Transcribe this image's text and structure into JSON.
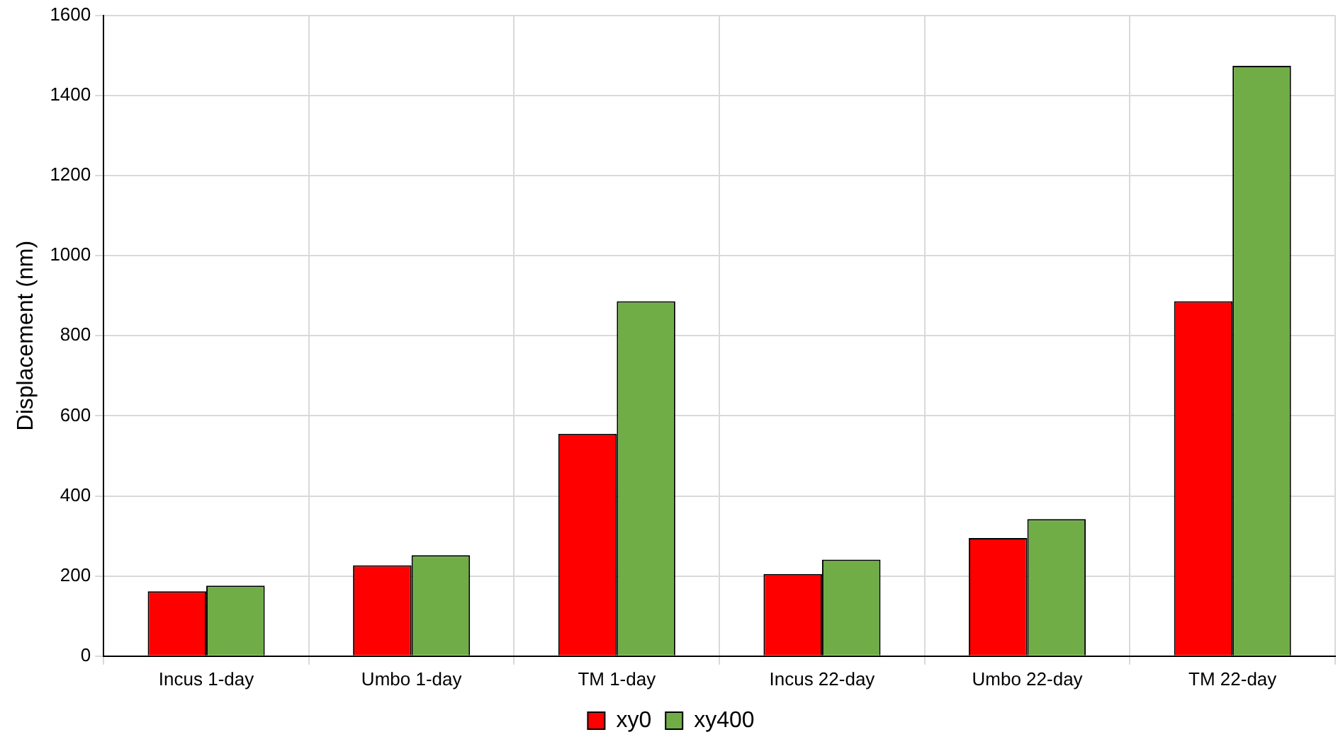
{
  "chart_data": {
    "type": "bar",
    "ylabel": "Displacement (nm)",
    "categories": [
      "Incus 1-day",
      "Umbo 1-day",
      "TM 1-day",
      "Incus 22-day",
      "Umbo 22-day",
      "TM 22-day"
    ],
    "series": [
      {
        "name": "xy0",
        "color": "#ff0000",
        "values": [
          162,
          227,
          555,
          205,
          295,
          886
        ]
      },
      {
        "name": "xy400",
        "color": "#70ad47",
        "values": [
          176,
          252,
          886,
          241,
          342,
          1474
        ]
      }
    ],
    "ylim": [
      0,
      1600
    ],
    "yticks": [
      0,
      200,
      400,
      600,
      800,
      1000,
      1200,
      1400,
      1600
    ],
    "grid": true,
    "legend": "bottom"
  }
}
